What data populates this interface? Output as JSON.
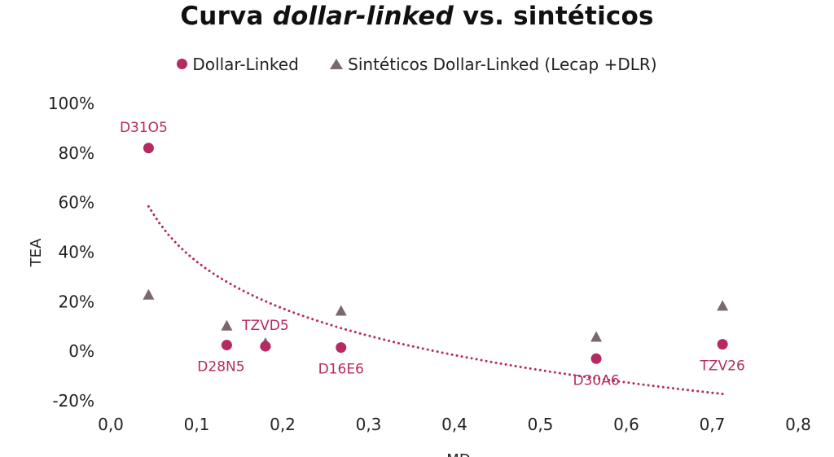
{
  "chart_data": {
    "type": "scatter",
    "title_parts": [
      "Curva ",
      "dollar-linked",
      " vs. sintéticos"
    ],
    "xlabel": "MD",
    "ylabel": "TEA",
    "xlim": [
      0,
      0.8
    ],
    "ylim": [
      -0.2,
      1.0
    ],
    "xticks": [
      0,
      0.1,
      0.2,
      0.3,
      0.4,
      0.5,
      0.6,
      0.7,
      0.8
    ],
    "xtick_labels": [
      "0,0",
      "0,1",
      "0,2",
      "0,3",
      "0,4",
      "0,5",
      "0,6",
      "0,7",
      "0,8"
    ],
    "yticks": [
      -0.2,
      0,
      0.2,
      0.4,
      0.6,
      0.8,
      1.0
    ],
    "ytick_labels": [
      "-20%",
      "0%",
      "20%",
      "40%",
      "60%",
      "80%",
      "100%"
    ],
    "grid": false,
    "legend_position": "top",
    "series": [
      {
        "name": "Dollar-Linked",
        "marker": "circle",
        "color": "#B52A60",
        "points": [
          {
            "x": 0.044,
            "y": 0.82,
            "label": "D31O5"
          },
          {
            "x": 0.135,
            "y": 0.025,
            "label": "D28N5"
          },
          {
            "x": 0.18,
            "y": 0.02,
            "label": "TZVD5"
          },
          {
            "x": 0.268,
            "y": 0.015,
            "label": "D16E6"
          },
          {
            "x": 0.565,
            "y": -0.03,
            "label": "D30A6"
          },
          {
            "x": 0.712,
            "y": 0.028,
            "label": "TZV26"
          }
        ]
      },
      {
        "name": "Sintéticos Dollar-Linked (Lecap +DLR)",
        "marker": "triangle",
        "color": "#7A686D",
        "points": [
          {
            "x": 0.044,
            "y": 0.225
          },
          {
            "x": 0.135,
            "y": 0.1
          },
          {
            "x": 0.18,
            "y": 0.03
          },
          {
            "x": 0.268,
            "y": 0.16
          },
          {
            "x": 0.565,
            "y": 0.055
          },
          {
            "x": 0.712,
            "y": 0.18
          }
        ]
      }
    ],
    "trendline": {
      "type": "logarithmic",
      "series": "Dollar-Linked",
      "color": "#B52A60",
      "style": "dotted",
      "a": -0.2648,
      "b": -0.272,
      "x_range": [
        0.044,
        0.712
      ]
    }
  }
}
